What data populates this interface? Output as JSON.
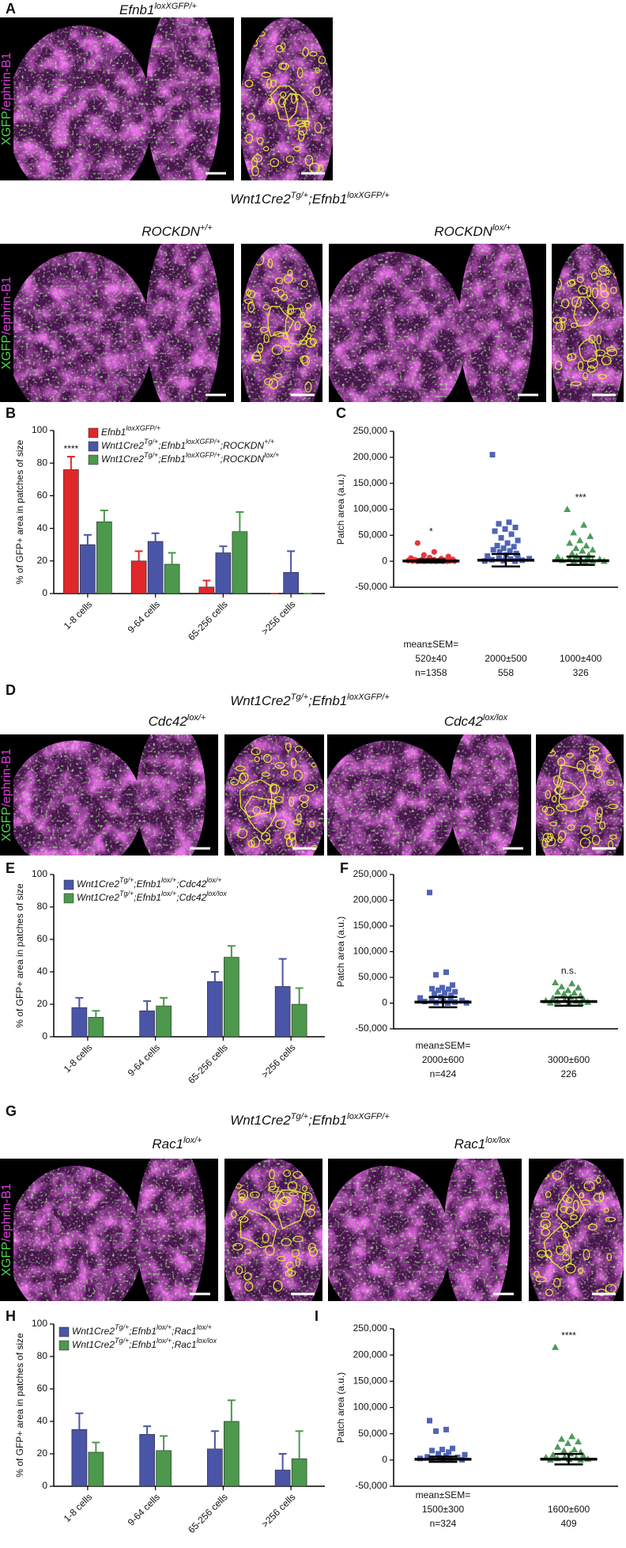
{
  "rows": [
    {
      "letter": "A",
      "heading": [
        "Efnb1",
        "loxXGFP/+"
      ],
      "stain": [
        "XGFP",
        "/ephrin-B1"
      ]
    },
    {
      "heading": [
        "Wnt1Cre2",
        "Tg/+",
        ";Efnb1",
        "loxXGFP/+"
      ],
      "left": [
        "ROCKDN",
        "+/+"
      ],
      "right": [
        "ROCKDN",
        "lox/+"
      ],
      "stain": [
        "XGFP",
        "/ephrin-B1"
      ]
    },
    {
      "letter": "D",
      "heading": [
        "Wnt1Cre2",
        "Tg/+",
        ";Efnb1",
        "loxXGFP/+"
      ],
      "left": [
        "Cdc42",
        "lox/+"
      ],
      "right": [
        "Cdc42",
        "lox/lox"
      ],
      "stain": [
        "XGFP",
        "/ephrin-B1"
      ]
    },
    {
      "letter": "G",
      "heading": [
        "Wnt1Cre2",
        "Tg/+",
        ";Efnb1",
        "loxXGFP/+"
      ],
      "left": [
        "Rac1",
        "lox/+"
      ],
      "right": [
        "Rac1",
        "lox/lox"
      ],
      "stain": [
        "XGFP",
        "/ephrin-B1"
      ]
    }
  ],
  "chart_data": [
    {
      "type": "bar",
      "panel_label": "B",
      "ylabel": "% of GFP+ area in patches of size",
      "categories": [
        "1-8 cells",
        "9-64 cells",
        "65-256 cells",
        ">256 cells"
      ],
      "ylim": [
        0,
        100
      ],
      "yticks": [
        0,
        20,
        40,
        60,
        80,
        100
      ],
      "series": [
        {
          "name": [
            "Efnb1",
            "loxXGFP/+"
          ],
          "color": "#e0282b",
          "values": [
            76,
            20,
            4,
            0
          ],
          "errors": [
            8,
            6,
            4,
            0
          ],
          "annotations": [
            "****",
            null,
            null,
            null
          ]
        },
        {
          "name": [
            "Wnt1Cre2",
            "Tg/+",
            ";Efnb1",
            "loxXGFP/+",
            ";ROCKDN",
            "+/+"
          ],
          "color": "#4a55a8",
          "values": [
            30,
            32,
            25,
            13
          ],
          "errors": [
            6,
            5,
            4,
            13
          ]
        },
        {
          "name": [
            "Wnt1Cre2",
            "Tg/+",
            ";Efnb1",
            "loxXGFP/+",
            ";ROCKDN",
            "lox/+"
          ],
          "color": "#4c984c",
          "values": [
            44,
            18,
            38,
            0
          ],
          "errors": [
            7,
            7,
            12,
            0
          ]
        }
      ]
    },
    {
      "type": "dot",
      "panel_label": "C",
      "ylabel": "Patch area (a.u.)",
      "ylim": [
        -50000,
        250000
      ],
      "yticks": [
        {
          "value": 250000,
          "label": "250,000"
        },
        {
          "value": 200000,
          "label": "200,000"
        },
        {
          "value": 150000,
          "label": "150,000"
        },
        {
          "value": 100000,
          "label": "100,000"
        },
        {
          "value": 50000,
          "label": "50,000"
        },
        0,
        {
          "value": -50000,
          "label": "-50,000"
        }
      ],
      "stats_header": "mean±SEM=",
      "groups": [
        {
          "color": "#e3393c",
          "marker": "circle",
          "annotation": "*",
          "mean": 520,
          "error": 3000,
          "mean_label": "520±40",
          "n_label": "n=1358",
          "values": [
            35000,
            18000,
            12000,
            9000,
            7000,
            6000,
            5000,
            4000,
            3500,
            3000,
            2500,
            2000,
            1500,
            1200,
            1000,
            800,
            600,
            500,
            400,
            300,
            200,
            100,
            100,
            50,
            0
          ]
        },
        {
          "color": "#5064b6",
          "marker": "square",
          "mean": 2000,
          "error": 12000,
          "mean_label": "2000±500",
          "n_label": "558",
          "values": [
            205000,
            75000,
            72000,
            65000,
            62000,
            58000,
            52000,
            45000,
            40000,
            35000,
            30000,
            28000,
            25000,
            22000,
            20000,
            18000,
            15000,
            12000,
            10000,
            8000,
            6000,
            5000,
            4000,
            3000,
            2000,
            1000,
            500,
            200
          ]
        },
        {
          "color": "#4d9a5a",
          "marker": "triangle",
          "annotation": "***",
          "mean": 1000,
          "error": 8000,
          "mean_label": "1000±400",
          "n_label": "326",
          "values": [
            100000,
            70000,
            55000,
            48000,
            40000,
            35000,
            30000,
            25000,
            22000,
            20000,
            15000,
            12000,
            10000,
            8000,
            6000,
            5000,
            4000,
            3000,
            2000,
            1000,
            500,
            200,
            100
          ]
        }
      ]
    },
    {
      "type": "bar",
      "panel_label": "E",
      "ylabel": "% of GFP+ area in patches of size",
      "categories": [
        "1-8 cells",
        "9-64 cells",
        "65-256 cells",
        ">256 cells"
      ],
      "ylim": [
        0,
        100
      ],
      "yticks": [
        0,
        20,
        40,
        60,
        80,
        100
      ],
      "series": [
        {
          "name": [
            "Wnt1Cre2",
            "Tg/+",
            ";Efnb1",
            "lox/+",
            ";Cdc42",
            "lox/+"
          ],
          "color": "#4a55a8",
          "values": [
            18,
            16,
            34,
            31
          ],
          "errors": [
            6,
            6,
            6,
            17
          ]
        },
        {
          "name": [
            "Wnt1Cre2",
            "Tg/+",
            ";Efnb1",
            "lox/+",
            ";Cdc42",
            "lox/lox"
          ],
          "color": "#4c984c",
          "values": [
            12,
            19,
            49,
            20
          ],
          "errors": [
            4,
            5,
            7,
            10
          ]
        }
      ]
    },
    {
      "type": "dot",
      "panel_label": "F",
      "ylabel": "Patch area (a.u.)",
      "ylim": [
        -50000,
        250000
      ],
      "yticks": [
        {
          "value": 250000,
          "label": "250,000"
        },
        {
          "value": 200000,
          "label": "200,000"
        },
        {
          "value": 150000,
          "label": "150,000"
        },
        {
          "value": 100000,
          "label": "100,000"
        },
        {
          "value": 50000,
          "label": "50,000"
        },
        0,
        {
          "value": -50000,
          "label": "-50,000"
        }
      ],
      "stats_header": "mean±SEM=",
      "groups": [
        {
          "color": "#5064b6",
          "marker": "square",
          "mean": 2000,
          "error": 10000,
          "mean_label": "2000±600",
          "n_label": "n=424",
          "values": [
            215000,
            60000,
            55000,
            35000,
            30000,
            28000,
            27000,
            25000,
            22000,
            20000,
            18000,
            15000,
            12000,
            10000,
            8000,
            6000,
            5000,
            4000,
            3000,
            2000,
            1000,
            500,
            200
          ]
        },
        {
          "color": "#4d9a5a",
          "marker": "triangle",
          "annotation": "n.s.",
          "mean": 3000,
          "error": 8000,
          "mean_label": "3000±600",
          "n_label": "226",
          "values": [
            40000,
            38000,
            32000,
            30000,
            25000,
            22000,
            20000,
            18000,
            15000,
            12000,
            10000,
            8000,
            6000,
            5000,
            4000,
            3000,
            2000,
            1000,
            500,
            200
          ]
        }
      ]
    },
    {
      "type": "bar",
      "panel_label": "H",
      "ylabel": "% of GFP+ area in patches of size",
      "categories": [
        "1-8 cells",
        "9-64 cells",
        "65-256 cells",
        ">256 cells"
      ],
      "ylim": [
        0,
        100
      ],
      "yticks": [
        0,
        20,
        40,
        60,
        80,
        100
      ],
      "series": [
        {
          "name": [
            "Wnt1Cre2",
            "Tg/+",
            ";Efnb1",
            "lox/+",
            ";Rac1",
            "lox/+"
          ],
          "color": "#4a55a8",
          "values": [
            35,
            32,
            23,
            10
          ],
          "errors": [
            10,
            5,
            11,
            10
          ]
        },
        {
          "name": [
            "Wnt1Cre2",
            "Tg/+",
            ";Efnb1",
            "lox/+",
            ";Rac1",
            "lox/lox"
          ],
          "color": "#4c984c",
          "values": [
            21,
            22,
            40,
            17
          ],
          "errors": [
            6,
            9,
            13,
            17
          ]
        }
      ]
    },
    {
      "type": "dot",
      "panel_label": "I",
      "ylabel": "Patch area (a.u.)",
      "ylim": [
        -50000,
        250000
      ],
      "yticks": [
        {
          "value": 250000,
          "label": "250,000"
        },
        {
          "value": 200000,
          "label": "200,000"
        },
        {
          "value": 150000,
          "label": "150,000"
        },
        {
          "value": 100000,
          "label": "100,000"
        },
        {
          "value": 50000,
          "label": "50,000"
        },
        0,
        {
          "value": -50000,
          "label": "-50,000"
        }
      ],
      "stats_header": "mean±SEM=",
      "groups": [
        {
          "color": "#5064b6",
          "marker": "square",
          "mean": 1500,
          "error": 5000,
          "mean_label": "1500±300",
          "n_label": "n=324",
          "values": [
            75000,
            58000,
            55000,
            22000,
            20000,
            18000,
            15000,
            12000,
            10000,
            8000,
            6000,
            5000,
            4000,
            3000,
            2000,
            1000,
            500,
            200
          ]
        },
        {
          "color": "#4d9a5a",
          "marker": "triangle",
          "annotation": "****",
          "mean": 1600,
          "error": 10000,
          "mean_label": "1600±600",
          "n_label": "409",
          "values": [
            215000,
            45000,
            40000,
            35000,
            32000,
            25000,
            20000,
            18000,
            15000,
            12000,
            10000,
            8000,
            6000,
            5000,
            4000,
            3000,
            2000,
            1000,
            500,
            200
          ]
        }
      ]
    }
  ]
}
